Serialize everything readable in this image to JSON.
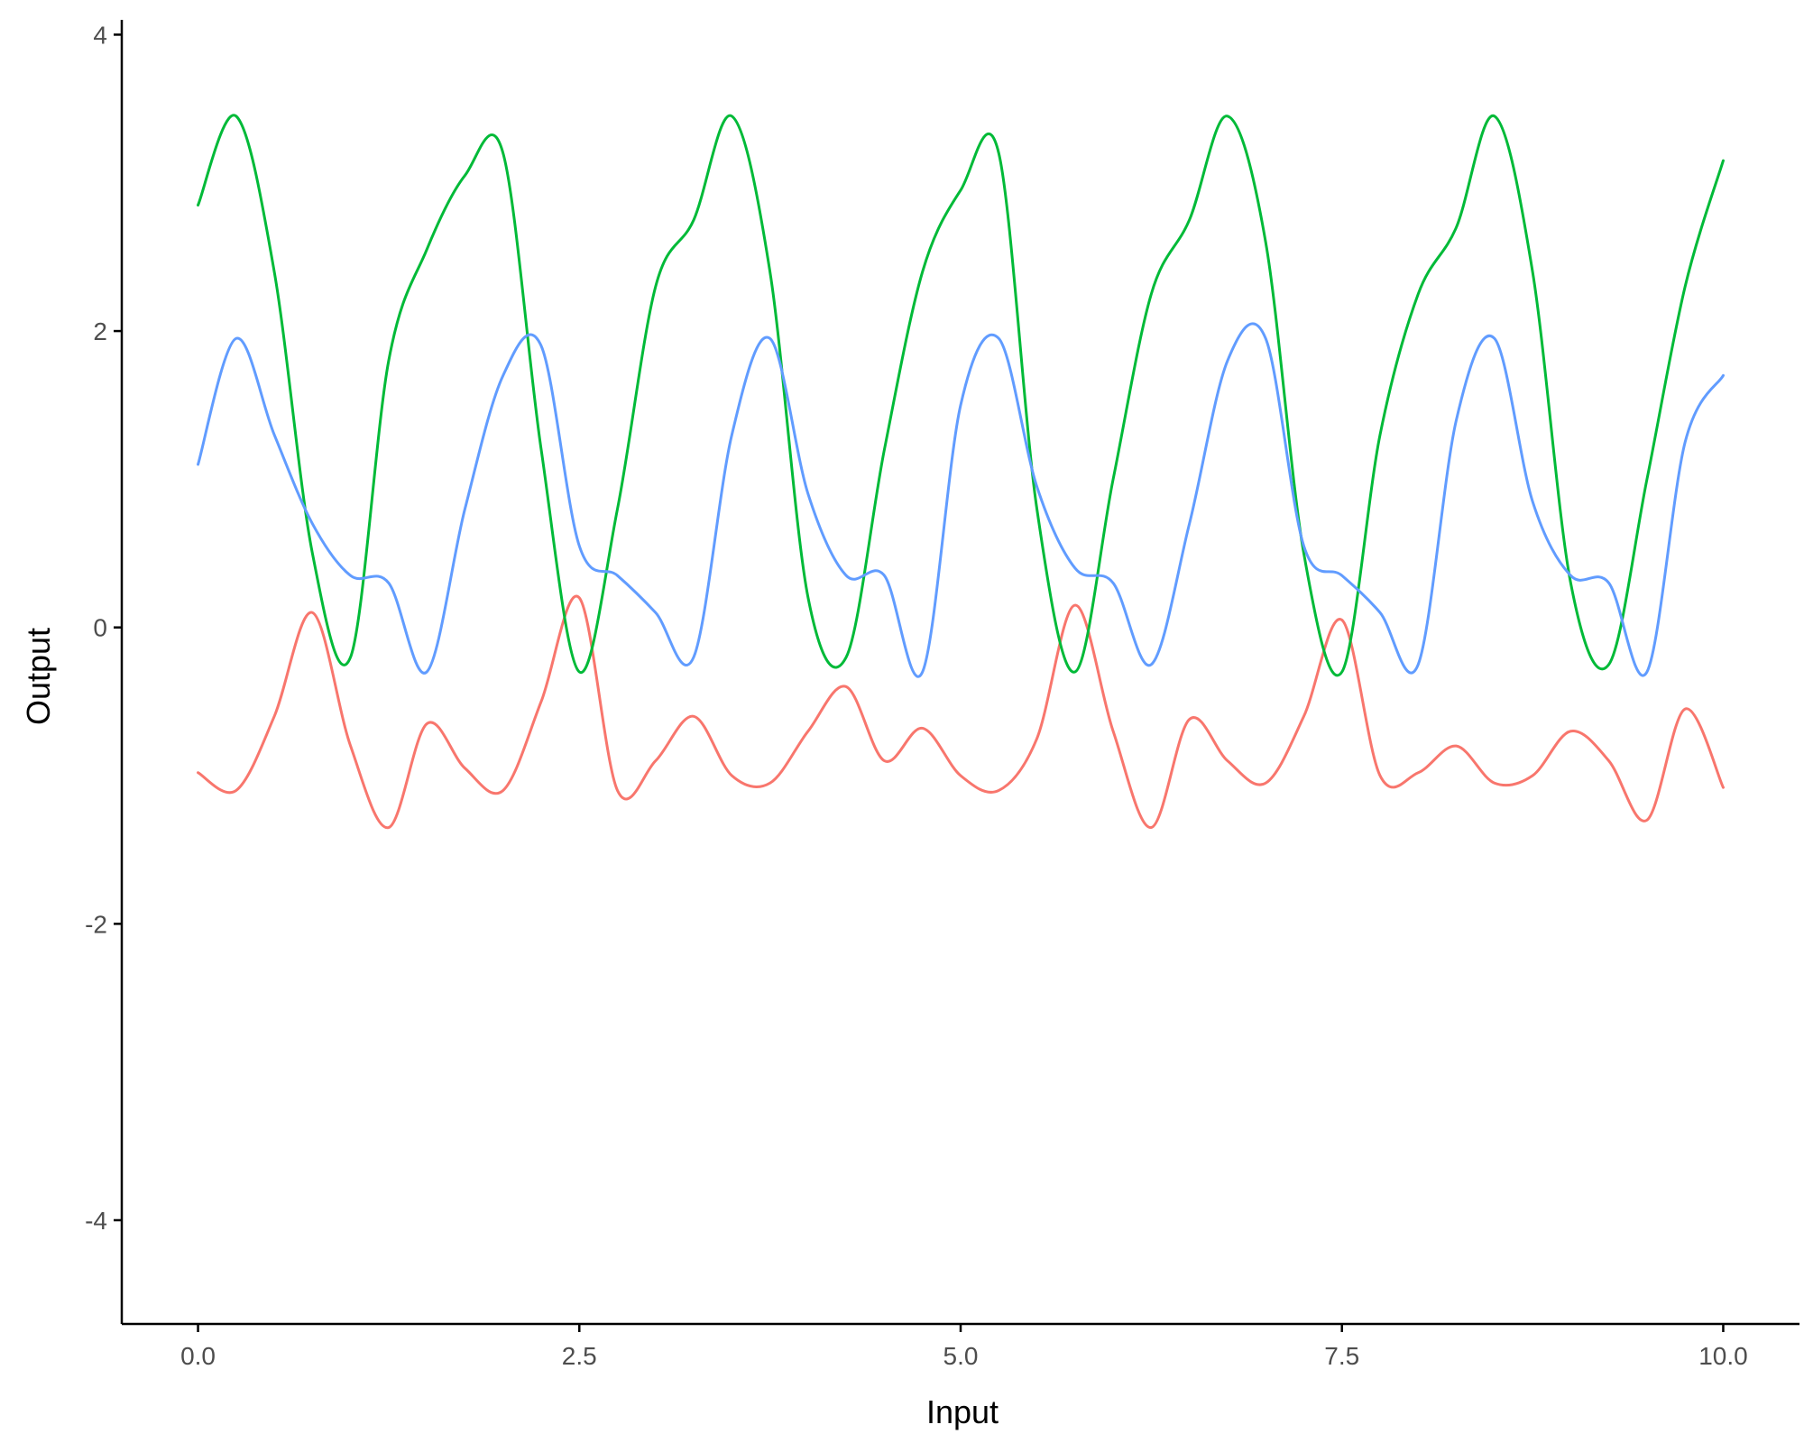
{
  "chart_data": {
    "type": "line",
    "title": "",
    "xlabel": "Input",
    "ylabel": "Output",
    "xlim": [
      -0.5,
      10.5
    ],
    "ylim": [
      -4.7,
      4.1
    ],
    "x_ticks": [
      0,
      2.5,
      5,
      7.5,
      10
    ],
    "x_tick_labels": [
      "0.0",
      "2.5",
      "5.0",
      "7.5",
      "10.0"
    ],
    "y_ticks": [
      -4,
      -2,
      0,
      2,
      4
    ],
    "y_tick_labels": [
      "-4",
      "-2",
      "0",
      "2",
      "4"
    ],
    "grid": false,
    "legend": "none",
    "x": [
      0,
      0.25,
      0.5,
      0.75,
      1,
      1.25,
      1.5,
      1.75,
      2,
      2.25,
      2.5,
      2.75,
      3,
      3.25,
      3.5,
      3.75,
      4,
      4.25,
      4.5,
      4.75,
      5,
      5.25,
      5.5,
      5.75,
      6,
      6.25,
      6.5,
      6.75,
      7,
      7.25,
      7.5,
      7.75,
      8,
      8.25,
      8.5,
      8.75,
      9,
      9.25,
      9.5,
      9.75,
      10
    ],
    "series": [
      {
        "color": "#F8766D",
        "values": [
          -0.98,
          -1.1,
          -0.6,
          0.1,
          -0.8,
          -1.35,
          -0.65,
          -0.95,
          -1.1,
          -0.5,
          0.2,
          -1.1,
          -0.9,
          -0.6,
          -1.0,
          -1.05,
          -0.7,
          -0.4,
          -0.9,
          -0.68,
          -1.0,
          -1.1,
          -0.75,
          0.15,
          -0.7,
          -1.35,
          -0.62,
          -0.9,
          -1.05,
          -0.6,
          0.05,
          -1.0,
          -0.98,
          -0.8,
          -1.05,
          -1.0,
          -0.7,
          -0.9,
          -1.3,
          -0.55,
          -1.08
        ]
      },
      {
        "color": "#00BA38",
        "values": [
          2.85,
          3.45,
          2.4,
          0.5,
          -0.2,
          1.8,
          2.55,
          3.05,
          3.2,
          1.2,
          -0.3,
          0.8,
          2.3,
          2.75,
          3.45,
          2.4,
          0.2,
          -0.2,
          1.2,
          2.4,
          2.95,
          3.2,
          0.8,
          -0.3,
          1.0,
          2.25,
          2.75,
          3.45,
          2.6,
          0.5,
          -0.3,
          1.3,
          2.25,
          2.7,
          3.45,
          2.4,
          0.3,
          -0.25,
          1.0,
          2.3,
          3.15
        ]
      },
      {
        "color": "#619CFF",
        "values": [
          1.1,
          1.95,
          1.3,
          0.7,
          0.35,
          0.3,
          -0.3,
          0.8,
          1.7,
          1.9,
          0.55,
          0.35,
          0.1,
          -0.2,
          1.3,
          1.95,
          0.9,
          0.35,
          0.35,
          -0.3,
          1.5,
          1.95,
          0.95,
          0.4,
          0.3,
          -0.25,
          0.7,
          1.8,
          1.95,
          0.55,
          0.35,
          0.1,
          -0.25,
          1.4,
          1.95,
          0.85,
          0.35,
          0.3,
          -0.3,
          1.25,
          1.7
        ]
      }
    ]
  }
}
